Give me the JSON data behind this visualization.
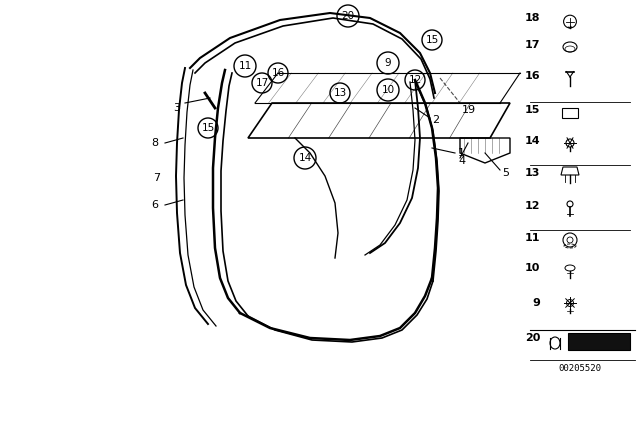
{
  "bg_color": "#ffffff",
  "title": "",
  "part_numbers_main": [
    1,
    2,
    3,
    4,
    5,
    6,
    7,
    8,
    9,
    10,
    11,
    12,
    13,
    14,
    15,
    16,
    17,
    18,
    19,
    20
  ],
  "circled_labels": [
    9,
    10,
    11,
    12,
    13,
    14,
    15,
    16,
    17,
    20
  ],
  "right_panel_labels": [
    9,
    10,
    11,
    12,
    13,
    14,
    15,
    16,
    17,
    18,
    20
  ],
  "diagram_number": "00205520",
  "line_color": "#000000",
  "text_color": "#000000"
}
